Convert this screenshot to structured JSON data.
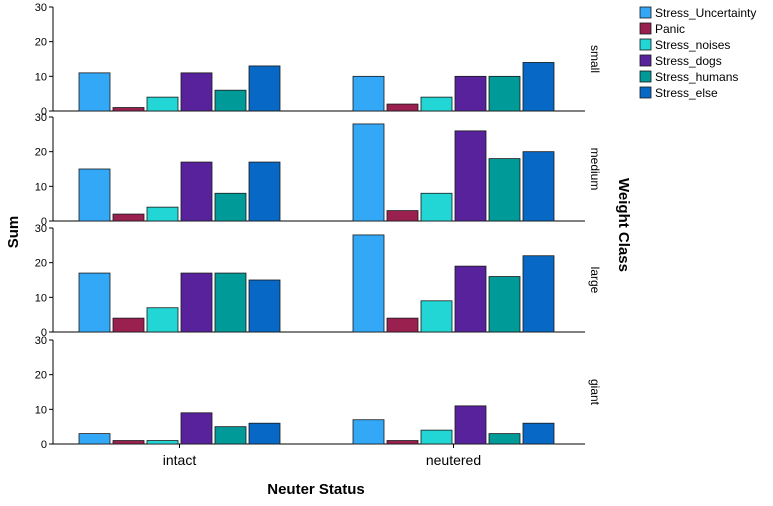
{
  "chart_data": {
    "type": "bar",
    "title": "",
    "xlabel": "Neuter Status",
    "ylabel": "Sum",
    "panel_label": "Weight Class",
    "categories": [
      "intact",
      "neutered"
    ],
    "ylim": [
      0,
      30
    ],
    "yticks": [
      0,
      10,
      20,
      30
    ],
    "legend_position": "top-right",
    "series": [
      {
        "name": "Stress_Uncertainty",
        "color": "#33a8f7"
      },
      {
        "name": "Panic",
        "color": "#99204f"
      },
      {
        "name": "Stress_noises",
        "color": "#23d6d6"
      },
      {
        "name": "Stress_dogs",
        "color": "#57229c"
      },
      {
        "name": "Stress_humans",
        "color": "#009a98"
      },
      {
        "name": "Stress_else",
        "color": "#0868c5"
      }
    ],
    "panels": [
      {
        "name": "small",
        "values": {
          "intact": [
            11,
            1,
            4,
            11,
            6,
            13
          ],
          "neutered": [
            10,
            2,
            4,
            10,
            10,
            14
          ]
        }
      },
      {
        "name": "medium",
        "values": {
          "intact": [
            15,
            2,
            4,
            17,
            8,
            17
          ],
          "neutered": [
            28,
            3,
            8,
            26,
            18,
            20
          ]
        }
      },
      {
        "name": "large",
        "values": {
          "intact": [
            17,
            4,
            7,
            17,
            17,
            15
          ],
          "neutered": [
            28,
            4,
            9,
            19,
            16,
            22
          ]
        }
      },
      {
        "name": "giant",
        "values": {
          "intact": [
            3,
            1,
            1,
            9,
            5,
            6
          ],
          "neutered": [
            7,
            1,
            4,
            11,
            3,
            6
          ]
        }
      }
    ]
  }
}
